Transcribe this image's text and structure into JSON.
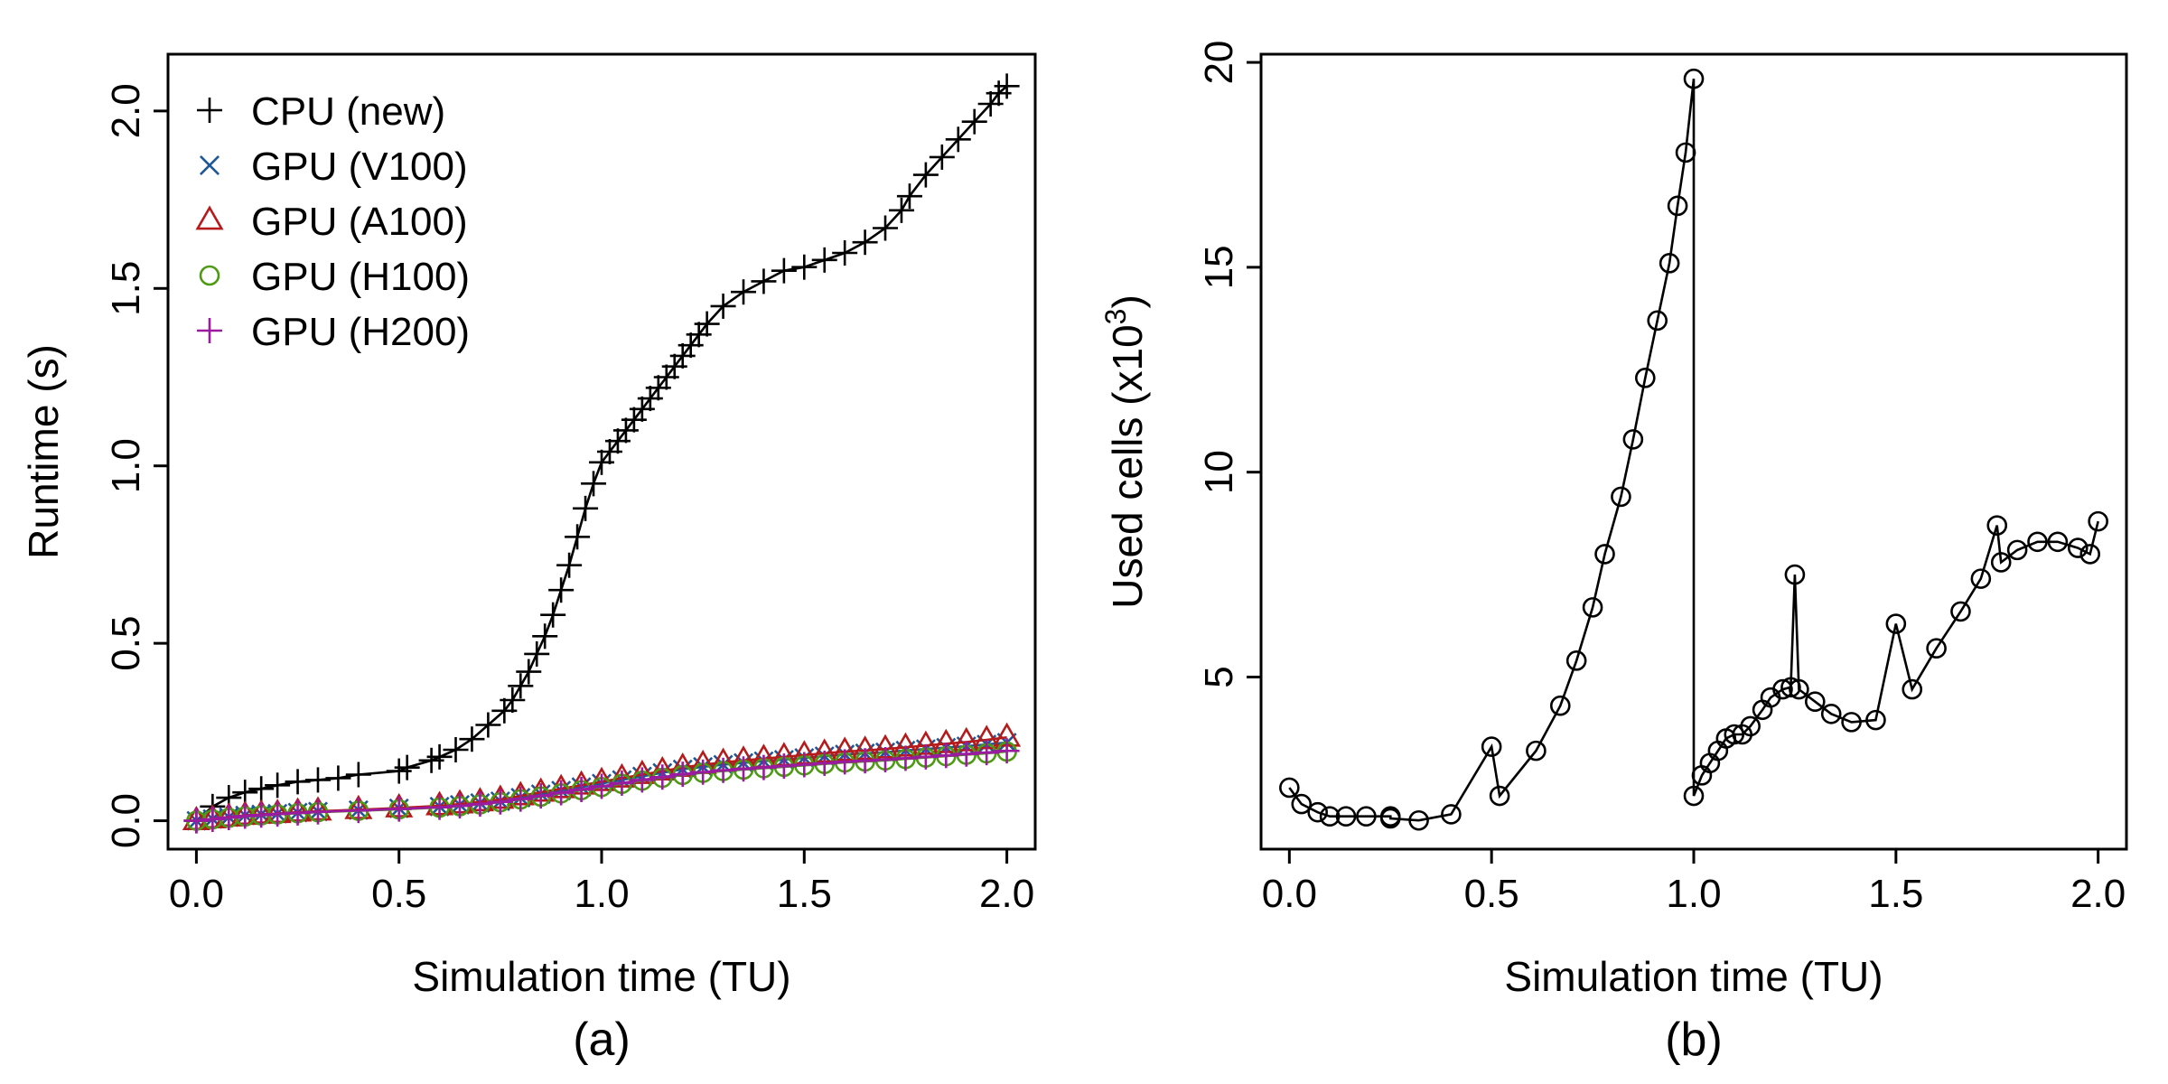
{
  "chart_data": [
    {
      "id": "a",
      "type": "line",
      "panel_label": "(a)",
      "title": "",
      "xlabel": "Simulation time (TU)",
      "ylabel": "Runtime (s)",
      "xlim": [
        -0.07,
        2.07
      ],
      "ylim": [
        -0.08,
        2.16
      ],
      "xticks": [
        0.0,
        0.5,
        1.0,
        1.5,
        2.0
      ],
      "xtick_labels": [
        "0.0",
        "0.5",
        "1.0",
        "1.5",
        "2.0"
      ],
      "yticks": [
        0.0,
        0.5,
        1.0,
        1.5,
        2.0
      ],
      "ytick_labels": [
        "0.0",
        "0.5",
        "1.0",
        "1.5",
        "2.0"
      ],
      "legend_position": "top-left",
      "series": [
        {
          "name": "CPU (new)",
          "color": "#000000",
          "marker": "plus",
          "x": [
            0.0,
            0.04,
            0.08,
            0.12,
            0.16,
            0.2,
            0.25,
            0.3,
            0.35,
            0.4,
            0.5,
            0.52,
            0.58,
            0.6,
            0.64,
            0.68,
            0.72,
            0.76,
            0.78,
            0.8,
            0.82,
            0.84,
            0.86,
            0.88,
            0.9,
            0.92,
            0.94,
            0.96,
            0.98,
            1.0,
            1.02,
            1.04,
            1.06,
            1.08,
            1.1,
            1.12,
            1.14,
            1.16,
            1.18,
            1.2,
            1.22,
            1.24,
            1.26,
            1.3,
            1.35,
            1.4,
            1.45,
            1.5,
            1.55,
            1.6,
            1.65,
            1.7,
            1.74,
            1.76,
            1.8,
            1.84,
            1.88,
            1.92,
            1.96,
            1.98,
            2.0
          ],
          "y": [
            0.0,
            0.04,
            0.065,
            0.08,
            0.09,
            0.1,
            0.11,
            0.115,
            0.12,
            0.13,
            0.14,
            0.15,
            0.17,
            0.18,
            0.2,
            0.23,
            0.27,
            0.31,
            0.34,
            0.38,
            0.42,
            0.47,
            0.52,
            0.58,
            0.65,
            0.72,
            0.8,
            0.88,
            0.95,
            1.01,
            1.04,
            1.07,
            1.1,
            1.13,
            1.16,
            1.19,
            1.22,
            1.25,
            1.28,
            1.31,
            1.34,
            1.37,
            1.4,
            1.45,
            1.49,
            1.52,
            1.55,
            1.56,
            1.58,
            1.6,
            1.63,
            1.67,
            1.72,
            1.76,
            1.82,
            1.87,
            1.92,
            1.97,
            2.02,
            2.05,
            2.07
          ]
        },
        {
          "name": "GPU (V100)",
          "color": "#1f5796",
          "marker": "x",
          "x": [
            0.0,
            0.04,
            0.08,
            0.12,
            0.16,
            0.2,
            0.25,
            0.3,
            0.4,
            0.5,
            0.6,
            0.65,
            0.7,
            0.75,
            0.8,
            0.85,
            0.9,
            0.95,
            1.0,
            1.05,
            1.1,
            1.15,
            1.2,
            1.25,
            1.3,
            1.35,
            1.4,
            1.45,
            1.5,
            1.55,
            1.6,
            1.65,
            1.7,
            1.75,
            1.8,
            1.85,
            1.9,
            1.95,
            2.0
          ],
          "y": [
            0.0,
            0.005,
            0.01,
            0.015,
            0.018,
            0.02,
            0.023,
            0.026,
            0.03,
            0.035,
            0.04,
            0.045,
            0.05,
            0.055,
            0.065,
            0.075,
            0.085,
            0.095,
            0.105,
            0.115,
            0.125,
            0.135,
            0.145,
            0.152,
            0.158,
            0.163,
            0.168,
            0.172,
            0.177,
            0.182,
            0.187,
            0.19,
            0.193,
            0.198,
            0.202,
            0.206,
            0.21,
            0.215,
            0.22
          ]
        },
        {
          "name": "GPU (A100)",
          "color": "#b51b1b",
          "marker": "triangle",
          "x": [
            0.0,
            0.04,
            0.08,
            0.12,
            0.16,
            0.2,
            0.25,
            0.3,
            0.4,
            0.5,
            0.6,
            0.65,
            0.7,
            0.75,
            0.8,
            0.85,
            0.9,
            0.95,
            1.0,
            1.05,
            1.1,
            1.15,
            1.2,
            1.25,
            1.3,
            1.35,
            1.4,
            1.45,
            1.5,
            1.55,
            1.6,
            1.65,
            1.7,
            1.75,
            1.8,
            1.85,
            1.9,
            1.95,
            2.0
          ],
          "y": [
            0.0,
            0.005,
            0.01,
            0.015,
            0.018,
            0.02,
            0.024,
            0.027,
            0.031,
            0.036,
            0.042,
            0.047,
            0.053,
            0.06,
            0.07,
            0.08,
            0.09,
            0.1,
            0.11,
            0.12,
            0.13,
            0.14,
            0.15,
            0.158,
            0.164,
            0.17,
            0.175,
            0.18,
            0.185,
            0.19,
            0.195,
            0.198,
            0.202,
            0.207,
            0.212,
            0.217,
            0.222,
            0.228,
            0.235
          ]
        },
        {
          "name": "GPU (H100)",
          "color": "#4d9a14",
          "marker": "circle",
          "x": [
            0.0,
            0.04,
            0.08,
            0.12,
            0.16,
            0.2,
            0.25,
            0.3,
            0.4,
            0.5,
            0.6,
            0.65,
            0.7,
            0.75,
            0.8,
            0.85,
            0.9,
            0.95,
            1.0,
            1.05,
            1.1,
            1.15,
            1.2,
            1.25,
            1.3,
            1.35,
            1.4,
            1.45,
            1.5,
            1.55,
            1.6,
            1.65,
            1.7,
            1.75,
            1.8,
            1.85,
            1.9,
            1.95,
            2.0
          ],
          "y": [
            0.0,
            0.004,
            0.008,
            0.012,
            0.015,
            0.018,
            0.021,
            0.024,
            0.028,
            0.032,
            0.037,
            0.041,
            0.046,
            0.052,
            0.06,
            0.068,
            0.077,
            0.086,
            0.095,
            0.104,
            0.113,
            0.121,
            0.129,
            0.135,
            0.14,
            0.144,
            0.148,
            0.152,
            0.156,
            0.16,
            0.164,
            0.167,
            0.17,
            0.174,
            0.178,
            0.182,
            0.186,
            0.19,
            0.195
          ]
        },
        {
          "name": "GPU (H200)",
          "color": "#9a1ba0",
          "marker": "plus",
          "x": [
            0.0,
            0.04,
            0.08,
            0.12,
            0.16,
            0.2,
            0.25,
            0.3,
            0.4,
            0.5,
            0.6,
            0.65,
            0.7,
            0.75,
            0.8,
            0.85,
            0.9,
            0.95,
            1.0,
            1.05,
            1.1,
            1.15,
            1.2,
            1.25,
            1.3,
            1.35,
            1.4,
            1.45,
            1.5,
            1.55,
            1.6,
            1.65,
            1.7,
            1.75,
            1.8,
            1.85,
            1.9,
            1.95,
            2.0
          ],
          "y": [
            0.0,
            0.004,
            0.009,
            0.013,
            0.016,
            0.019,
            0.022,
            0.025,
            0.029,
            0.033,
            0.038,
            0.042,
            0.047,
            0.053,
            0.061,
            0.07,
            0.079,
            0.088,
            0.097,
            0.106,
            0.115,
            0.123,
            0.131,
            0.137,
            0.142,
            0.146,
            0.15,
            0.154,
            0.158,
            0.162,
            0.166,
            0.169,
            0.172,
            0.176,
            0.18,
            0.184,
            0.188,
            0.192,
            0.197
          ]
        }
      ]
    },
    {
      "id": "b",
      "type": "line",
      "panel_label": "(b)",
      "title": "",
      "xlabel": "Simulation time (TU)",
      "ylabel_main": "Used cells (x10",
      "ylabel_sup": "3",
      "ylabel_end": ")",
      "xlim": [
        -0.07,
        2.07
      ],
      "ylim": [
        0.8,
        20.2
      ],
      "xticks": [
        0.0,
        0.5,
        1.0,
        1.5,
        2.0
      ],
      "xtick_labels": [
        "0.0",
        "0.5",
        "1.0",
        "1.5",
        "2.0"
      ],
      "yticks": [
        5,
        10,
        15,
        20
      ],
      "ytick_labels": [
        "5",
        "10",
        "15",
        "20"
      ],
      "series": [
        {
          "name": "Used cells",
          "color": "#000000",
          "marker": "circle",
          "x": [
            0.0,
            0.03,
            0.07,
            0.1,
            0.14,
            0.19,
            0.25,
            0.25,
            0.32,
            0.4,
            0.5,
            0.52,
            0.61,
            0.67,
            0.71,
            0.75,
            0.78,
            0.82,
            0.85,
            0.88,
            0.91,
            0.94,
            0.96,
            0.98,
            1.0,
            1.0,
            1.02,
            1.04,
            1.06,
            1.08,
            1.1,
            1.12,
            1.14,
            1.17,
            1.19,
            1.22,
            1.24,
            1.25,
            1.26,
            1.3,
            1.34,
            1.39,
            1.45,
            1.5,
            1.54,
            1.6,
            1.66,
            1.71,
            1.75,
            1.76,
            1.8,
            1.85,
            1.9,
            1.95,
            1.98,
            2.0
          ],
          "y": [
            2.3,
            1.9,
            1.7,
            1.6,
            1.6,
            1.6,
            1.6,
            1.55,
            1.5,
            1.65,
            3.3,
            2.1,
            3.2,
            4.3,
            5.4,
            6.7,
            8.0,
            9.4,
            10.8,
            12.3,
            13.7,
            15.1,
            16.5,
            17.8,
            19.6,
            2.1,
            2.6,
            2.9,
            3.2,
            3.5,
            3.6,
            3.6,
            3.8,
            4.2,
            4.5,
            4.7,
            4.75,
            7.5,
            4.7,
            4.4,
            4.1,
            3.9,
            3.95,
            6.3,
            4.7,
            5.7,
            6.6,
            7.4,
            8.7,
            7.8,
            8.1,
            8.3,
            8.3,
            8.15,
            8.0,
            8.8
          ]
        }
      ]
    }
  ]
}
